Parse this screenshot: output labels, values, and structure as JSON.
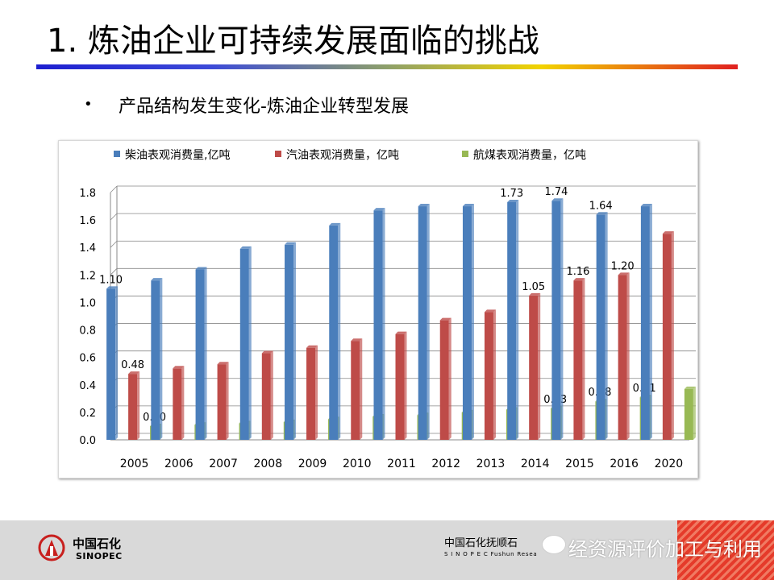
{
  "slide": {
    "title": "1. 炼油企业可持续发展面临的挑战",
    "bullet": "•",
    "subtitle": "产品结构发生变化-炼油企业转型发展"
  },
  "footer": {
    "logo_cn": "中国石化",
    "logo_en": "SINOPEC",
    "institute_cn": "中国石化抚顺石",
    "institute_en": "S I N O P E C   Fushun Resea",
    "watermark": "经资源评价加工与利用"
  },
  "colors": {
    "diesel": "#4a7ebb",
    "gasoline": "#be4b48",
    "jet": "#98b954",
    "title_bar": [
      "#1d1fd0",
      "#f2d300",
      "#e02020"
    ],
    "footer_stripe": "#e53a2a"
  },
  "chart_data": {
    "type": "bar",
    "categories": [
      "2005",
      "2006",
      "2007",
      "2008",
      "2009",
      "2010",
      "2011",
      "2012",
      "2013",
      "2014",
      "2015",
      "2016",
      "2020"
    ],
    "series": [
      {
        "name": "柴油表观消费量,亿吨",
        "values": [
          1.1,
          1.16,
          1.24,
          1.39,
          1.42,
          1.56,
          1.67,
          1.7,
          1.7,
          1.73,
          1.74,
          1.64,
          1.7
        ],
        "labels": [
          "1.10",
          "",
          "",
          "",
          "",
          "",
          "",
          "",
          "",
          "1.73",
          "1.74",
          "1.64",
          ""
        ]
      },
      {
        "name": "汽油表观消费量，亿吨",
        "values": [
          0.48,
          0.52,
          0.55,
          0.63,
          0.67,
          0.72,
          0.77,
          0.87,
          0.93,
          1.05,
          1.16,
          1.2,
          1.5
        ],
        "labels": [
          "0.48",
          "",
          "",
          "",
          "",
          "",
          "",
          "",
          "",
          "1.05",
          "1.16",
          "1.20",
          ""
        ]
      },
      {
        "name": "航煤表观消费量，亿吨",
        "values": [
          0.1,
          0.11,
          0.12,
          0.13,
          0.15,
          0.17,
          0.18,
          0.2,
          0.22,
          0.23,
          0.28,
          0.31,
          0.37
        ],
        "labels": [
          "0.10",
          "",
          "",
          "",
          "",
          "",
          "",
          "",
          "",
          "0.23",
          "0.28",
          "0.31",
          ""
        ]
      }
    ],
    "yticks": [
      "0.0",
      "0.2",
      "0.4",
      "0.6",
      "0.8",
      "1.0",
      "1.2",
      "1.4",
      "1.6",
      "1.8"
    ],
    "ylim": [
      0,
      1.8
    ],
    "grid": true,
    "legend": "top"
  }
}
